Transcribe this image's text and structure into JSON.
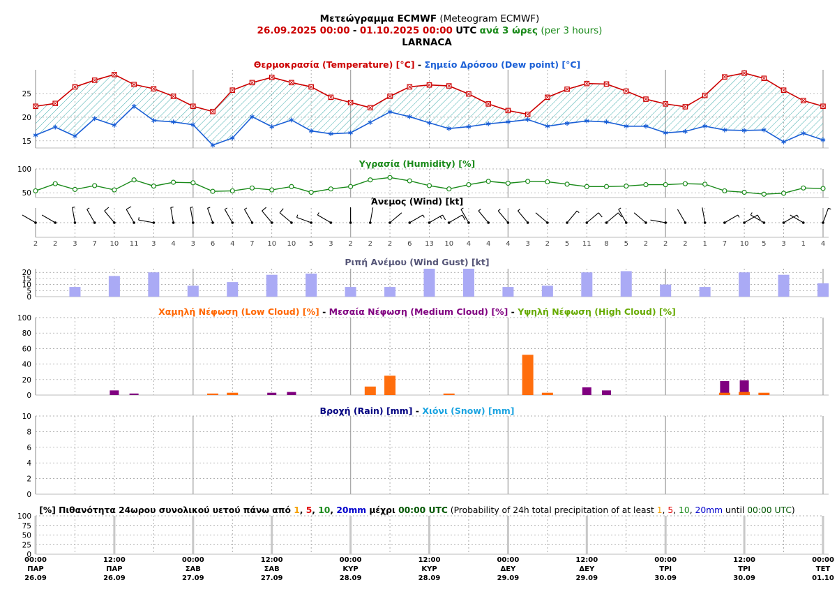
{
  "header": {
    "title_bold": "Μετεώγραμμα ECMWF",
    "title_normal": "(Meteogram ECMWF)",
    "period_from": "26.09.2025 00:00",
    "period_sep": "-",
    "period_to": "01.10.2025 00:00",
    "period_utc": "UTC",
    "period_step": "ανά 3 ώρες",
    "period_step_en": "(per 3 hours)",
    "location": "LARNACA"
  },
  "colors": {
    "temperature": "#cc0000",
    "dewpoint": "#1a5fd6",
    "humidity": "#1a8a1a",
    "gust": "#aaaaf5",
    "gust_title": "#555577",
    "low_cloud": "#ff6600",
    "medium_cloud": "#800080",
    "high_cloud": "#66aa00",
    "rain": "#000080",
    "snow": "#1aa3e0",
    "grid": "#999999",
    "hatch": "#29a3a3"
  },
  "time_axis": {
    "ticks": [
      {
        "time": "00:00",
        "day": "ΠΑΡ",
        "date": "26.09"
      },
      {
        "time": "12:00",
        "day": "ΠΑΡ",
        "date": "26.09"
      },
      {
        "time": "00:00",
        "day": "ΣΑΒ",
        "date": "27.09"
      },
      {
        "time": "12:00",
        "day": "ΣΑΒ",
        "date": "27.09"
      },
      {
        "time": "00:00",
        "day": "ΚΥΡ",
        "date": "28.09"
      },
      {
        "time": "12:00",
        "day": "ΚΥΡ",
        "date": "28.09"
      },
      {
        "time": "00:00",
        "day": "ΔΕΥ",
        "date": "29.09"
      },
      {
        "time": "12:00",
        "day": "ΔΕΥ",
        "date": "29.09"
      },
      {
        "time": "00:00",
        "day": "ΤΡΙ",
        "date": "30.09"
      },
      {
        "time": "12:00",
        "day": "ΤΡΙ",
        "date": "30.09"
      },
      {
        "time": "00:00",
        "day": "ΤΕΤ",
        "date": "01.10"
      }
    ]
  },
  "chart_data": [
    {
      "type": "line",
      "title_parts": [
        {
          "text": "Θερμοκρασία (Temperature) [°C]",
          "color": "#cc0000"
        },
        {
          "text": " - ",
          "color": "#000000"
        },
        {
          "text": "Σημείο Δρόσου (Dew point) [°C]",
          "color": "#1a5fd6"
        }
      ],
      "x_step_hours": 3,
      "ylim": [
        13.5,
        30
      ],
      "yticks": [
        "15",
        "20",
        "25"
      ],
      "grid": true,
      "series": [
        {
          "name": "Temperature",
          "values": [
            22.3,
            22.9,
            26.4,
            27.8,
            29.0,
            26.9,
            26.0,
            24.4,
            22.3,
            21.2,
            25.7,
            27.3,
            28.4,
            27.3,
            26.4,
            24.2,
            23.1,
            22.0,
            24.4,
            26.4,
            26.8,
            26.6,
            24.9,
            22.8,
            21.4,
            20.6,
            24.2,
            25.9,
            27.1,
            27.0,
            25.5,
            23.8,
            22.8,
            22.2,
            24.6,
            28.5,
            29.3,
            28.2,
            25.7,
            23.5,
            22.3
          ]
        },
        {
          "name": "Dew point",
          "values": [
            16.2,
            17.9,
            16.0,
            19.7,
            18.3,
            22.3,
            19.3,
            19.0,
            18.4,
            14.1,
            15.6,
            20.1,
            18.0,
            19.4,
            17.1,
            16.5,
            16.7,
            18.9,
            21.1,
            20.1,
            18.8,
            17.6,
            18.0,
            18.6,
            19.0,
            19.5,
            18.1,
            18.7,
            19.2,
            19.0,
            18.1,
            18.1,
            16.7,
            17.0,
            18.1,
            17.3,
            17.2,
            17.3,
            14.8,
            16.6,
            15.2
          ]
        }
      ]
    },
    {
      "type": "line",
      "title": "Υγρασία (Humidity) [%]",
      "ylim": [
        40,
        100
      ],
      "yticks": [
        "50",
        "100"
      ],
      "grid": true,
      "series": [
        {
          "name": "Humidity",
          "values": [
            54,
            69,
            57,
            65,
            56,
            77,
            64,
            72,
            71,
            53,
            54,
            60,
            56,
            63,
            51,
            58,
            63,
            77,
            82,
            75,
            65,
            58,
            67,
            74,
            70,
            74,
            73,
            68,
            63,
            63,
            64,
            67,
            67,
            69,
            68,
            54,
            51,
            47,
            49,
            60,
            59
          ]
        }
      ]
    },
    {
      "type": "wind-barbs",
      "title": "Άνεμος (Wind) [kt]",
      "speeds": [
        2,
        2,
        3,
        7,
        10,
        11,
        3,
        4,
        3,
        6,
        4,
        7,
        10,
        10,
        5,
        3,
        2,
        2,
        2,
        6,
        13,
        10,
        4,
        4,
        4,
        3,
        2,
        5,
        11,
        8,
        5,
        2,
        2,
        2,
        1,
        7,
        10,
        5,
        3,
        1,
        4
      ],
      "directions_deg": [
        300,
        300,
        350,
        330,
        320,
        330,
        280,
        350,
        350,
        340,
        330,
        330,
        320,
        310,
        290,
        300,
        360,
        10,
        50,
        60,
        60,
        60,
        330,
        320,
        320,
        320,
        310,
        40,
        50,
        50,
        330,
        310,
        280,
        330,
        350,
        60,
        60,
        300,
        60,
        300,
        20
      ]
    },
    {
      "type": "bar",
      "title": "Ριπή Ανέμου (Wind Gust) [kt]",
      "ylim": [
        0,
        23
      ],
      "yticks": [
        "0",
        "5",
        "10",
        "15",
        "20"
      ],
      "grid": true,
      "x_step_hours": 6,
      "offset_hours": 6,
      "series": [
        {
          "name": "Wind Gust",
          "values": [
            8,
            17,
            20,
            9,
            12,
            18,
            19,
            8,
            8,
            23,
            23,
            8,
            9,
            20,
            21,
            10,
            8,
            20,
            18,
            11
          ]
        }
      ]
    },
    {
      "type": "bar",
      "title_parts": [
        {
          "text": "Χαμηλή Νέφωση (Low Cloud) [%]",
          "color": "#ff6600"
        },
        {
          "text": " - ",
          "color": "#000000"
        },
        {
          "text": "Μεσαία Νέφωση (Medium Cloud) [%]",
          "color": "#800080"
        },
        {
          "text": " - ",
          "color": "#000000"
        },
        {
          "text": "Υψηλή Νέφωση (High Cloud) [%]",
          "color": "#66aa00"
        }
      ],
      "ylim": [
        0,
        100
      ],
      "yticks": [
        "0",
        "20",
        "40",
        "60",
        "80",
        "100"
      ],
      "grid": true,
      "x_step_hours": 3,
      "series": [
        {
          "name": "Low Cloud",
          "values": [
            0,
            0,
            0,
            0,
            0,
            0,
            0,
            0,
            0,
            2,
            3,
            0,
            0,
            0,
            0,
            0,
            0,
            11,
            25,
            0,
            0,
            2,
            0,
            0,
            0,
            52,
            3,
            0,
            0,
            0,
            0,
            0,
            0,
            0,
            0,
            3,
            4,
            3,
            0,
            0,
            0
          ]
        },
        {
          "name": "Medium Cloud",
          "values": [
            0,
            0,
            0,
            0,
            6,
            2,
            0,
            0,
            0,
            0,
            0,
            0,
            3,
            4,
            0,
            0,
            0,
            0,
            0,
            0,
            0,
            0,
            0,
            0,
            0,
            0,
            0,
            0,
            10,
            6,
            0,
            0,
            0,
            0,
            0,
            18,
            19,
            2,
            0,
            0,
            0
          ]
        },
        {
          "name": "High Cloud",
          "values": [
            0,
            0,
            0,
            0,
            0,
            0,
            0,
            0,
            0,
            0,
            0,
            0,
            0,
            0,
            0,
            0,
            0,
            0,
            0,
            0,
            0,
            0,
            0,
            0,
            0,
            0,
            0,
            0,
            0,
            0,
            0,
            0,
            0,
            0,
            0,
            0,
            0,
            0,
            0,
            0,
            0
          ]
        }
      ]
    },
    {
      "type": "bar",
      "title_parts": [
        {
          "text": "Βροχή (Rain) [mm]",
          "color": "#000080"
        },
        {
          "text": " - ",
          "color": "#000000"
        },
        {
          "text": "Χιόνι (Snow) [mm]",
          "color": "#1aa3e0"
        }
      ],
      "ylim": [
        0,
        10
      ],
      "yticks": [
        "0",
        "2",
        "4",
        "6",
        "8",
        "10"
      ],
      "grid": true,
      "series": [
        {
          "name": "Rain",
          "values": []
        },
        {
          "name": "Snow",
          "values": []
        }
      ]
    },
    {
      "type": "bar",
      "title_parts": [
        {
          "text": "[%] Πιθανότητα 24ωρου συνολικού υετού πάνω από ",
          "color": "#000000",
          "bold": true
        },
        {
          "text": "1",
          "color": "#f5a000",
          "bold": true
        },
        {
          "text": ", ",
          "color": "#000000",
          "bold": true
        },
        {
          "text": "5",
          "color": "#e00000",
          "bold": true
        },
        {
          "text": ", ",
          "color": "#000000",
          "bold": true
        },
        {
          "text": "10",
          "color": "#1a8a1a",
          "bold": true
        },
        {
          "text": ", ",
          "color": "#000000",
          "bold": true
        },
        {
          "text": "20mm",
          "color": "#0000cc",
          "bold": true
        },
        {
          "text": " μέχρι ",
          "color": "#000000",
          "bold": true
        },
        {
          "text": "00:00 UTC",
          "color": "#005500",
          "bold": true
        },
        {
          "text": " (Probability of 24h total precipitation of at least ",
          "color": "#000000",
          "bold": false
        },
        {
          "text": "1",
          "color": "#f5a000",
          "bold": false
        },
        {
          "text": ", ",
          "color": "#000000",
          "bold": false
        },
        {
          "text": "5",
          "color": "#e00000",
          "bold": false
        },
        {
          "text": ", ",
          "color": "#000000",
          "bold": false
        },
        {
          "text": "10",
          "color": "#1a8a1a",
          "bold": false
        },
        {
          "text": ", ",
          "color": "#000000",
          "bold": false
        },
        {
          "text": "20mm",
          "color": "#0000cc",
          "bold": false
        },
        {
          "text": " until ",
          "color": "#000000",
          "bold": false
        },
        {
          "text": "00:00 UTC",
          "color": "#005500",
          "bold": false
        },
        {
          "text": ")",
          "color": "#000000",
          "bold": false
        }
      ],
      "ylim": [
        0,
        100
      ],
      "yticks": [
        "0",
        "25",
        "50",
        "75",
        "100"
      ],
      "grid": true,
      "series": [
        {
          "name": "1",
          "values": [
            0,
            0,
            0,
            0,
            0
          ]
        },
        {
          "name": "5",
          "values": [
            0,
            0,
            0,
            0,
            0
          ]
        },
        {
          "name": "10",
          "values": [
            0,
            0,
            0,
            0,
            0
          ]
        },
        {
          "name": "20mm",
          "values": [
            0,
            0,
            0,
            0,
            0
          ]
        }
      ]
    }
  ]
}
